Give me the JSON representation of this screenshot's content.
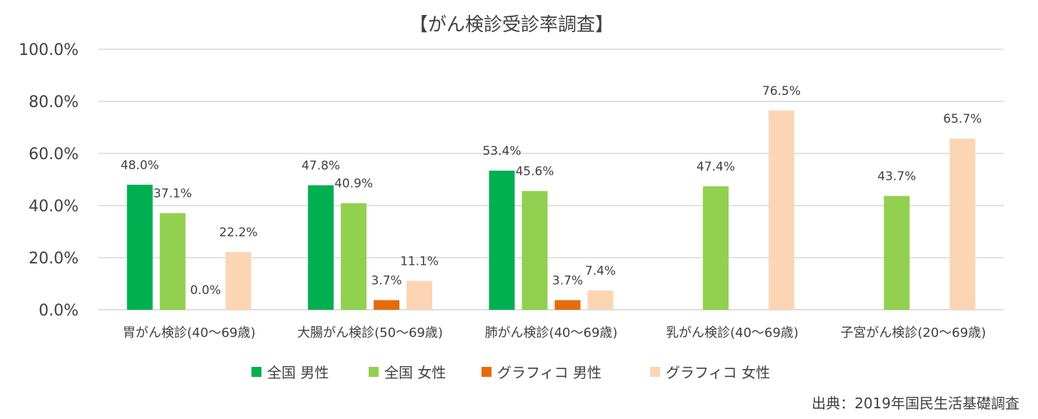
{
  "chart_data": {
    "type": "bar",
    "title": "【がん検診受診率調査】",
    "categories": [
      "胃がん検診(40～69歳)",
      "大腸がん検診(50～69歳)",
      "肺がん検診(40～69歳)",
      "乳がん検診(40～69歳)",
      "子宮がん検診(20～69歳)"
    ],
    "series": [
      {
        "name": "全国 男性",
        "color": "#00b050",
        "values": [
          48.0,
          47.8,
          53.4,
          null,
          null
        ],
        "labels": [
          "48.0%",
          "47.8%",
          "53.4%",
          "",
          ""
        ]
      },
      {
        "name": "全国 女性",
        "color": "#92d050",
        "values": [
          37.1,
          40.9,
          45.6,
          47.4,
          43.7
        ],
        "labels": [
          "37.1%",
          "40.9%",
          "45.6%",
          "47.4%",
          "43.7%"
        ]
      },
      {
        "name": "グラフィコ 男性",
        "color": "#e46c0a",
        "values": [
          0.0,
          3.7,
          3.7,
          null,
          null
        ],
        "labels": [
          "0.0%",
          "3.7%",
          "3.7%",
          "",
          ""
        ]
      },
      {
        "name": "グラフィコ 女性",
        "color": "#fcd5b5",
        "values": [
          22.2,
          11.1,
          7.4,
          76.5,
          65.7
        ],
        "labels": [
          "22.2%",
          "11.1%",
          "7.4%",
          "76.5%",
          "65.7%"
        ]
      }
    ],
    "ylim": [
      0,
      100
    ],
    "yticks": [
      0,
      20,
      40,
      60,
      80,
      100
    ],
    "ytick_labels": [
      "0.0%",
      "20.0%",
      "40.0%",
      "60.0%",
      "80.0%",
      "100.0%"
    ],
    "xlabel": "",
    "ylabel": "",
    "grid": true,
    "legend_position": "bottom"
  },
  "source": "出典：2019年国民生活基礎調査"
}
